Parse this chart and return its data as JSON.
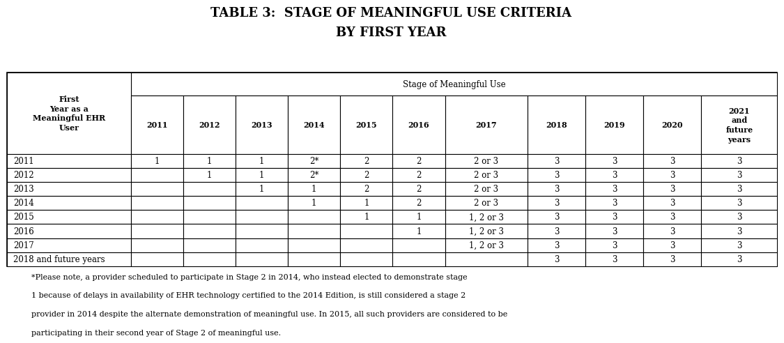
{
  "title_line1": "TABLE 3:  STAGE OF MEANINGFUL USE CRITERIA",
  "title_line2": "BY FIRST YEAR",
  "col_header_span": "Stage of Meaningful Use",
  "col_headers": [
    "2011",
    "2012",
    "2013",
    "2014",
    "2015",
    "2016",
    "2017",
    "2018",
    "2019",
    "2020",
    "2021\nand\nfuture\nyears"
  ],
  "row_header_label": "First\nYear as a\nMeaningful EHR\nUser",
  "row_labels": [
    "2011",
    "2012",
    "2013",
    "2014",
    "2015",
    "2016",
    "2017",
    "2018 and future years"
  ],
  "table_data": [
    [
      "1",
      "1",
      "1",
      "2*",
      "2",
      "2",
      "2 or 3",
      "3",
      "3",
      "3",
      "3"
    ],
    [
      "",
      "1",
      "1",
      "2*",
      "2",
      "2",
      "2 or 3",
      "3",
      "3",
      "3",
      "3"
    ],
    [
      "",
      "",
      "1",
      "1",
      "2",
      "2",
      "2 or 3",
      "3",
      "3",
      "3",
      "3"
    ],
    [
      "",
      "",
      "",
      "1",
      "1",
      "2",
      "2 or 3",
      "3",
      "3",
      "3",
      "3"
    ],
    [
      "",
      "",
      "",
      "",
      "1",
      "1",
      "1, 2 or 3",
      "3",
      "3",
      "3",
      "3"
    ],
    [
      "",
      "",
      "",
      "",
      "",
      "1",
      "1, 2 or 3",
      "3",
      "3",
      "3",
      "3"
    ],
    [
      "",
      "",
      "",
      "",
      "",
      "",
      "1, 2 or 3",
      "3",
      "3",
      "3",
      "3"
    ],
    [
      "",
      "",
      "",
      "",
      "",
      "",
      "",
      "3",
      "3",
      "3",
      "3"
    ]
  ],
  "footnote_lines": [
    "*Please note, a provider scheduled to participate in Stage 2 in 2014, who instead elected to demonstrate stage",
    "1 because of delays in availability of EHR technology certified to the 2014 Edition, is still considered a stage 2",
    "provider in 2014 despite the alternate demonstration of meaningful use. In 2015, all such providers are considered to be",
    "participating in their second year of Stage 2 of meaningful use."
  ],
  "background_color": "#ffffff",
  "text_color": "#000000",
  "title_fontsize": 13,
  "header_fontsize": 8,
  "data_fontsize": 8.5,
  "footnote_fontsize": 8
}
